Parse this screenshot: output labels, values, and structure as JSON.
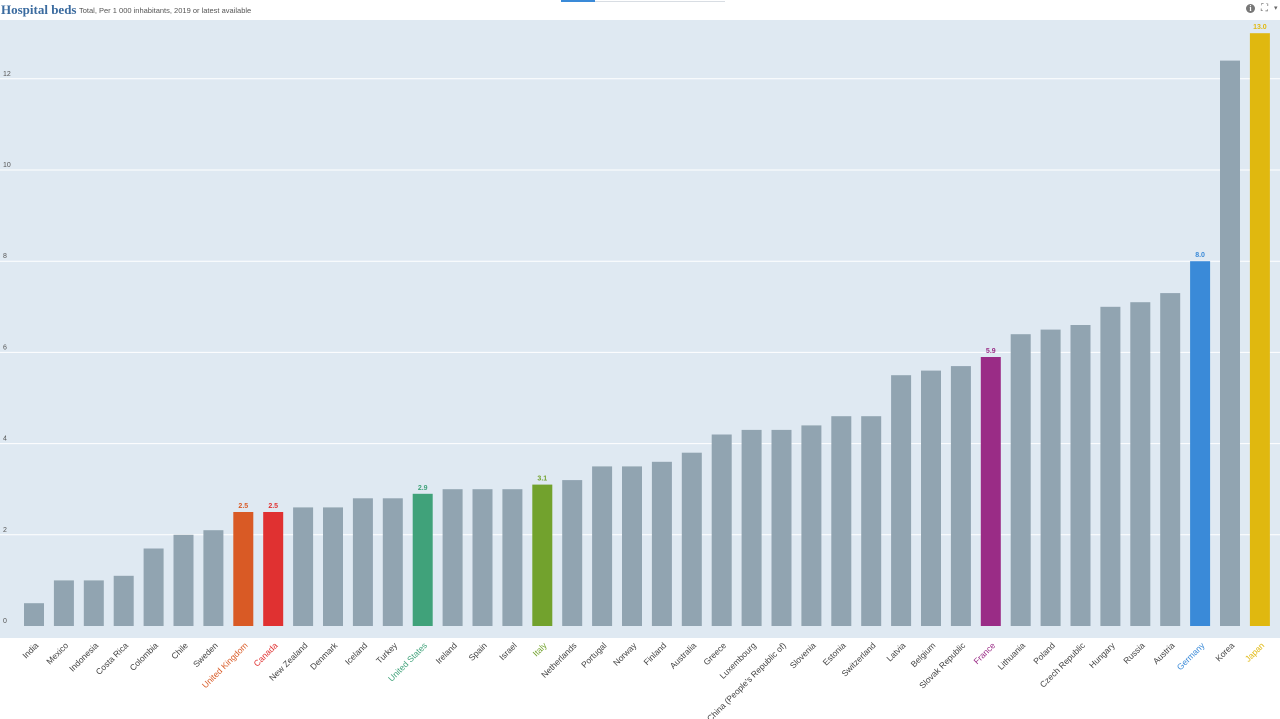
{
  "header": {
    "title": "Hospital beds",
    "subtitle": "Total, Per 1 000 inhabitants, 2019 or latest available",
    "info_icon": "i",
    "expand_icon": "⛶",
    "menu_icon": "▾"
  },
  "colors": {
    "plot_background": "#dfe9f2",
    "default_bar": "#91a4b1",
    "gridline": "#ffffff"
  },
  "chart_data": {
    "type": "bar",
    "title": "Hospital beds",
    "subtitle": "Total, Per 1 000 inhabitants, 2019 or latest available",
    "xlabel": "",
    "ylabel": "",
    "ylim": [
      0,
      13
    ],
    "yticks": [
      0,
      2,
      4,
      6,
      8,
      10,
      12
    ],
    "grid": true,
    "categories": [
      "India",
      "Mexico",
      "Indonesia",
      "Costa Rica",
      "Colombia",
      "Chile",
      "Sweden",
      "United Kingdom",
      "Canada",
      "New Zealand",
      "Denmark",
      "Iceland",
      "Turkey",
      "United States",
      "Ireland",
      "Spain",
      "Israel",
      "Italy",
      "Netherlands",
      "Portugal",
      "Norway",
      "Finland",
      "Australia",
      "Greece",
      "Luxembourg",
      "China (People's Republic of)",
      "Slovenia",
      "Estonia",
      "Switzerland",
      "Latvia",
      "Belgium",
      "Slovak Republic",
      "France",
      "Lithuania",
      "Poland",
      "Czech Republic",
      "Hungary",
      "Russia",
      "Austria",
      "Germany",
      "Korea",
      "Japan"
    ],
    "values": [
      0.5,
      1.0,
      1.0,
      1.1,
      1.7,
      2.0,
      2.1,
      2.5,
      2.5,
      2.6,
      2.6,
      2.8,
      2.8,
      2.9,
      3.0,
      3.0,
      3.0,
      3.1,
      3.2,
      3.5,
      3.5,
      3.6,
      3.8,
      4.2,
      4.3,
      4.3,
      4.4,
      4.6,
      4.6,
      5.5,
      5.6,
      5.7,
      5.9,
      6.4,
      6.5,
      6.6,
      7.0,
      7.1,
      7.3,
      8.0,
      12.4,
      13.0
    ],
    "highlights": [
      {
        "category": "United Kingdom",
        "color": "#d95a25",
        "label": "2.5"
      },
      {
        "category": "Canada",
        "color": "#e03131",
        "label": "2.5"
      },
      {
        "category": "United States",
        "color": "#40a27a",
        "label": "2.9"
      },
      {
        "category": "Italy",
        "color": "#72a22d",
        "label": "3.1"
      },
      {
        "category": "France",
        "color": "#9a2c86",
        "label": "5.9"
      },
      {
        "category": "Germany",
        "color": "#3a8ad8",
        "label": "8.0"
      },
      {
        "category": "Japan",
        "color": "#e0b80f",
        "label": "13.0"
      }
    ]
  }
}
